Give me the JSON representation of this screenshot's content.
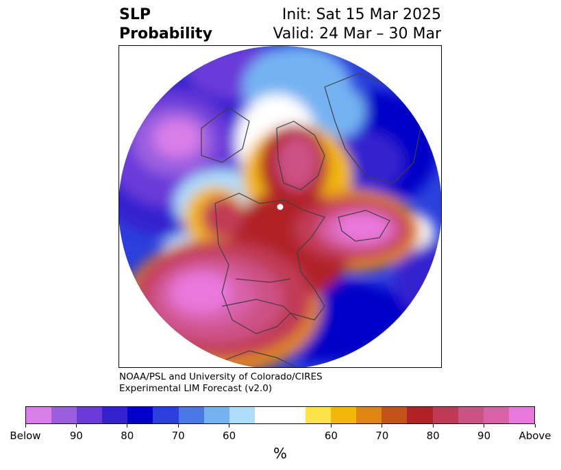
{
  "header": {
    "title_line1": "SLP",
    "title_line2": "Probability",
    "init": "Init: Sat 15 Mar 2025",
    "valid": "Valid: 24 Mar – 30 Mar"
  },
  "credit": {
    "line1": "NOAA/PSL and University of Colorado/CIRES",
    "line2": "Experimental LIM Forecast (v2.0)"
  },
  "colorbar": {
    "colors": [
      "#d97ee8",
      "#9b5ee0",
      "#6a3ad8",
      "#3522cf",
      "#0000c8",
      "#2a3fdc",
      "#4a78e6",
      "#74b2f2",
      "#aedcfb",
      "#ffffff",
      "#fde24a",
      "#f3b70a",
      "#df8612",
      "#c4521a",
      "#b02226",
      "#c13a55",
      "#cc5184",
      "#d861a8",
      "#e878dc"
    ],
    "tick_labels": [
      "Below",
      "90",
      "80",
      "70",
      "60",
      "60",
      "70",
      "80",
      "90",
      "Above"
    ],
    "unit": "%"
  }
}
